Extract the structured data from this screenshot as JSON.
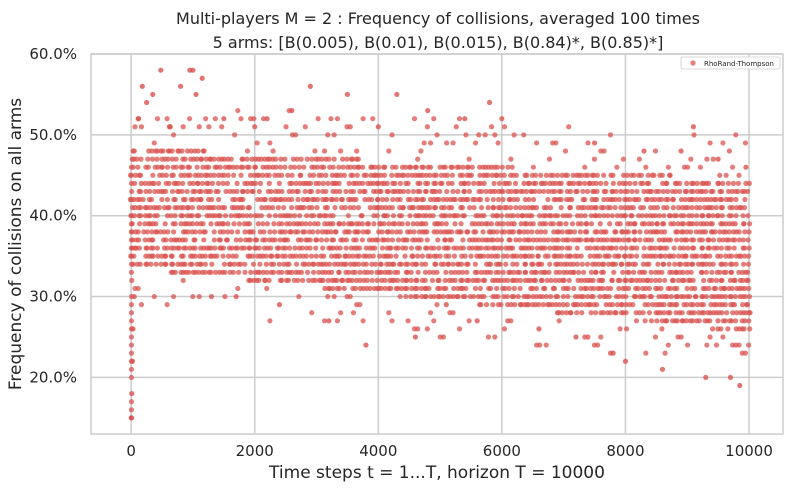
{
  "chart_data": {
    "type": "scatter",
    "title_line1": "Multi-players M = 2 : Frequency of collisions, averaged 100 times",
    "title_line2": "5 arms: [B(0.005), B(0.01), B(0.015), B(0.84)*, B(0.85)*]",
    "xlabel": "Time steps t = 1...T, horizon T = 10000",
    "ylabel": "Frequency of collisions on all arms",
    "xlim": [
      -650,
      10550
    ],
    "ylim": [
      0.13,
      0.6
    ],
    "x_ticks": [
      0,
      2000,
      4000,
      6000,
      8000,
      10000
    ],
    "x_tick_labels": [
      "0",
      "2000",
      "4000",
      "6000",
      "8000",
      "10000"
    ],
    "y_ticks": [
      0.2,
      0.3,
      0.4,
      0.5,
      0.6
    ],
    "y_tick_labels": [
      "20.0%",
      "30.0%",
      "40.0%",
      "50.0%",
      "60.0%"
    ],
    "grid": true,
    "legend_position": "top-right",
    "series": [
      {
        "name": "RhoRand-Thompson",
        "color": "#d9534f",
        "marker": "circle",
        "x": [
          2,
          10,
          20,
          30,
          50,
          80,
          120,
          180,
          250,
          350,
          480,
          620,
          800,
          950,
          1000,
          1050,
          1150,
          1300,
          1500,
          1700,
          2000,
          2200,
          2400,
          2600,
          2900,
          3200,
          3500,
          3800,
          4000,
          4300,
          4600,
          4800,
          5100,
          5400,
          5600,
          5800,
          6000,
          6300,
          6600,
          6900,
          7200,
          7500,
          7800,
          8000,
          8300,
          8600,
          8900,
          9100,
          9300,
          9500,
          9700,
          9850,
          9950,
          10000
        ],
        "y": [
          0.15,
          0.18,
          0.22,
          0.26,
          0.3,
          0.36,
          0.52,
          0.56,
          0.54,
          0.55,
          0.58,
          0.51,
          0.56,
          0.58,
          0.58,
          0.55,
          0.57,
          0.3,
          0.52,
          0.3,
          0.51,
          0.52,
          0.29,
          0.53,
          0.56,
          0.27,
          0.55,
          0.24,
          0.51,
          0.55,
          0.25,
          0.53,
          0.29,
          0.52,
          0.27,
          0.54,
          0.52,
          0.29,
          0.26,
          0.28,
          0.25,
          0.49,
          0.23,
          0.22,
          0.48,
          0.21,
          0.48,
          0.51,
          0.2,
          0.47,
          0.2,
          0.19,
          0.46,
          0.28
        ]
      }
    ]
  }
}
